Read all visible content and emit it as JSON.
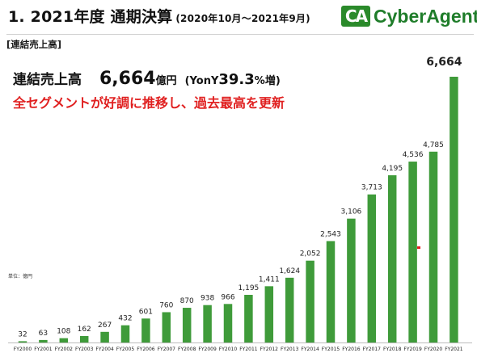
{
  "header": {
    "title": "1. 2021年度 通期決算",
    "subtitle": "(2020年10月～2021年9月)",
    "logo_mark": "CA",
    "logo_text": "CyberAgent."
  },
  "section_label": "[連結売上高]",
  "kpi": {
    "label": "連結売上高",
    "value": "6,664",
    "unit": "億円",
    "yoy_prefix": "(YonY",
    "yoy_value": "39.3",
    "yoy_suffix": "%増)"
  },
  "headline": "全セグメントが好調に推移し、過去最高を更新",
  "unit_note": "単位：億円",
  "colors": {
    "bar": "#3f9b3a",
    "accent_red": "#e02020",
    "brand_green": "#1f7d2a"
  },
  "chart_data": {
    "type": "bar",
    "title": "",
    "xlabel": "",
    "ylabel": "",
    "unit": "億円",
    "ylim": [
      0,
      7000
    ],
    "grid": false,
    "legend": "none",
    "categories": [
      "FY2000",
      "FY2001",
      "FY2002",
      "FY2003",
      "FY2004",
      "FY2005",
      "FY2006",
      "FY2007",
      "FY2008",
      "FY2009",
      "FY2010",
      "FY2011",
      "FY2012",
      "FY2013",
      "FY2014",
      "FY2015",
      "FY2016",
      "FY2017",
      "FY2018",
      "FY2019",
      "FY2020",
      "FY2021"
    ],
    "values": [
      32,
      63,
      108,
      162,
      267,
      432,
      601,
      760,
      870,
      938,
      966,
      1195,
      1411,
      1624,
      2052,
      2543,
      3106,
      3713,
      4195,
      4536,
      4785,
      6664
    ],
    "labels": [
      "32",
      "63",
      "108",
      "162",
      "267",
      "432",
      "601",
      "760",
      "870",
      "938",
      "966",
      "1,195",
      "1,411",
      "1,624",
      "2,052",
      "2,543",
      "3,106",
      "3,713",
      "4,195",
      "4,536",
      "4,785",
      "6,664"
    ]
  }
}
